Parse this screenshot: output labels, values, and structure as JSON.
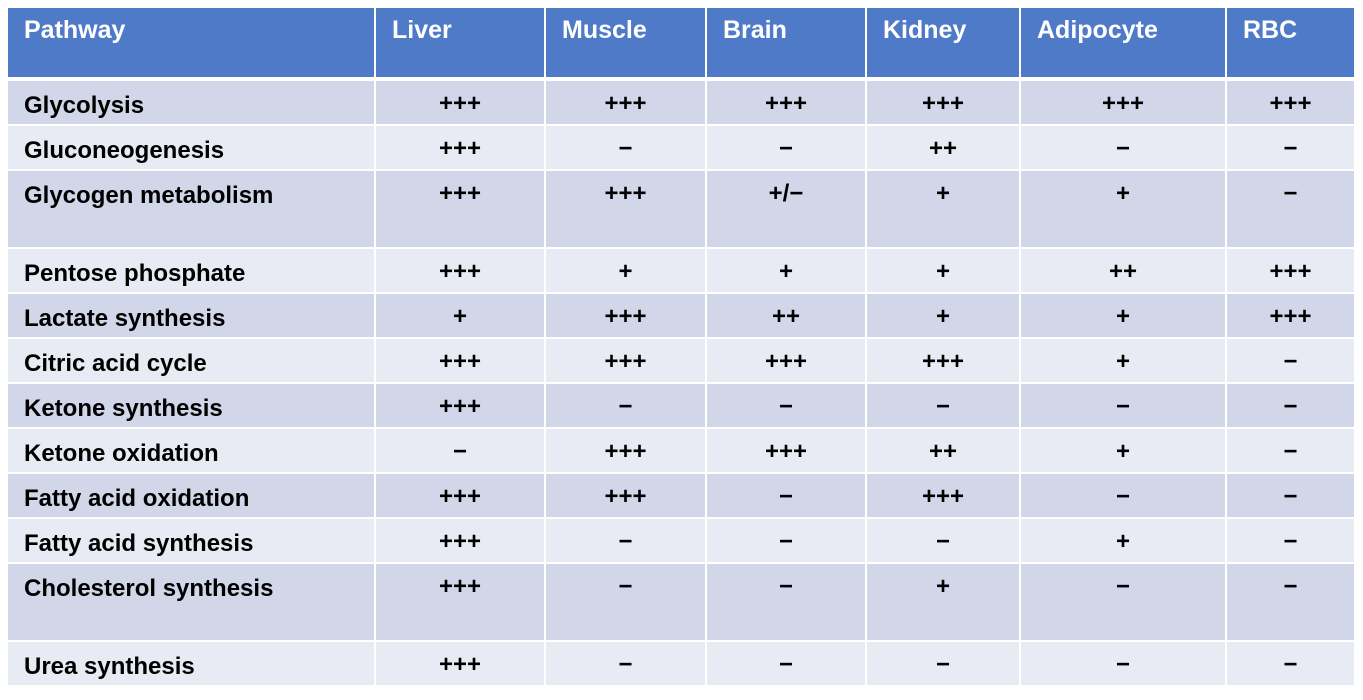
{
  "table": {
    "headers": [
      "Pathway",
      "Liver",
      "Muscle",
      "Brain",
      "Kidney",
      "Adipocyte",
      "RBC"
    ],
    "rows": [
      {
        "name": "Glycolysis",
        "values": [
          "+++",
          "+++",
          "+++",
          "+++",
          "+++",
          "+++"
        ]
      },
      {
        "name": "Gluconeogenesis",
        "values": [
          "+++",
          "−",
          "−",
          "++",
          "−",
          "−"
        ]
      },
      {
        "name": "Glycogen metabolism",
        "values": [
          "+++",
          "+++",
          "+/−",
          "+",
          "+",
          "−"
        ]
      },
      {
        "name": "Pentose phosphate",
        "values": [
          "+++",
          "+",
          "+",
          "+",
          "++",
          "+++"
        ]
      },
      {
        "name": "Lactate synthesis",
        "values": [
          "+",
          "+++",
          "++",
          "+",
          "+",
          "+++"
        ]
      },
      {
        "name": "Citric acid cycle",
        "values": [
          "+++",
          "+++",
          "+++",
          "+++",
          "+",
          "−"
        ]
      },
      {
        "name": "Ketone synthesis",
        "values": [
          "+++",
          "−",
          "−",
          "−",
          "−",
          "−"
        ]
      },
      {
        "name": "Ketone oxidation",
        "values": [
          "−",
          "+++",
          "+++",
          "++",
          "+",
          "−"
        ]
      },
      {
        "name": "Fatty acid oxidation",
        "values": [
          "+++",
          "+++",
          "−",
          "+++",
          "−",
          "−"
        ]
      },
      {
        "name": "Fatty acid synthesis",
        "values": [
          "+++",
          "−",
          "−",
          "−",
          "+",
          "−"
        ]
      },
      {
        "name": "Cholesterol synthesis",
        "values": [
          "+++",
          "−",
          "−",
          "+",
          "−",
          "−"
        ]
      },
      {
        "name": "Urea synthesis",
        "values": [
          "+++",
          "−",
          "−",
          "−",
          "−",
          "−"
        ]
      }
    ]
  },
  "colors": {
    "header_bg": "#4f7ac8",
    "header_text": "#ffffff",
    "row_band_dark": "#d1d7e8",
    "row_band_light": "#e9ebf4"
  }
}
